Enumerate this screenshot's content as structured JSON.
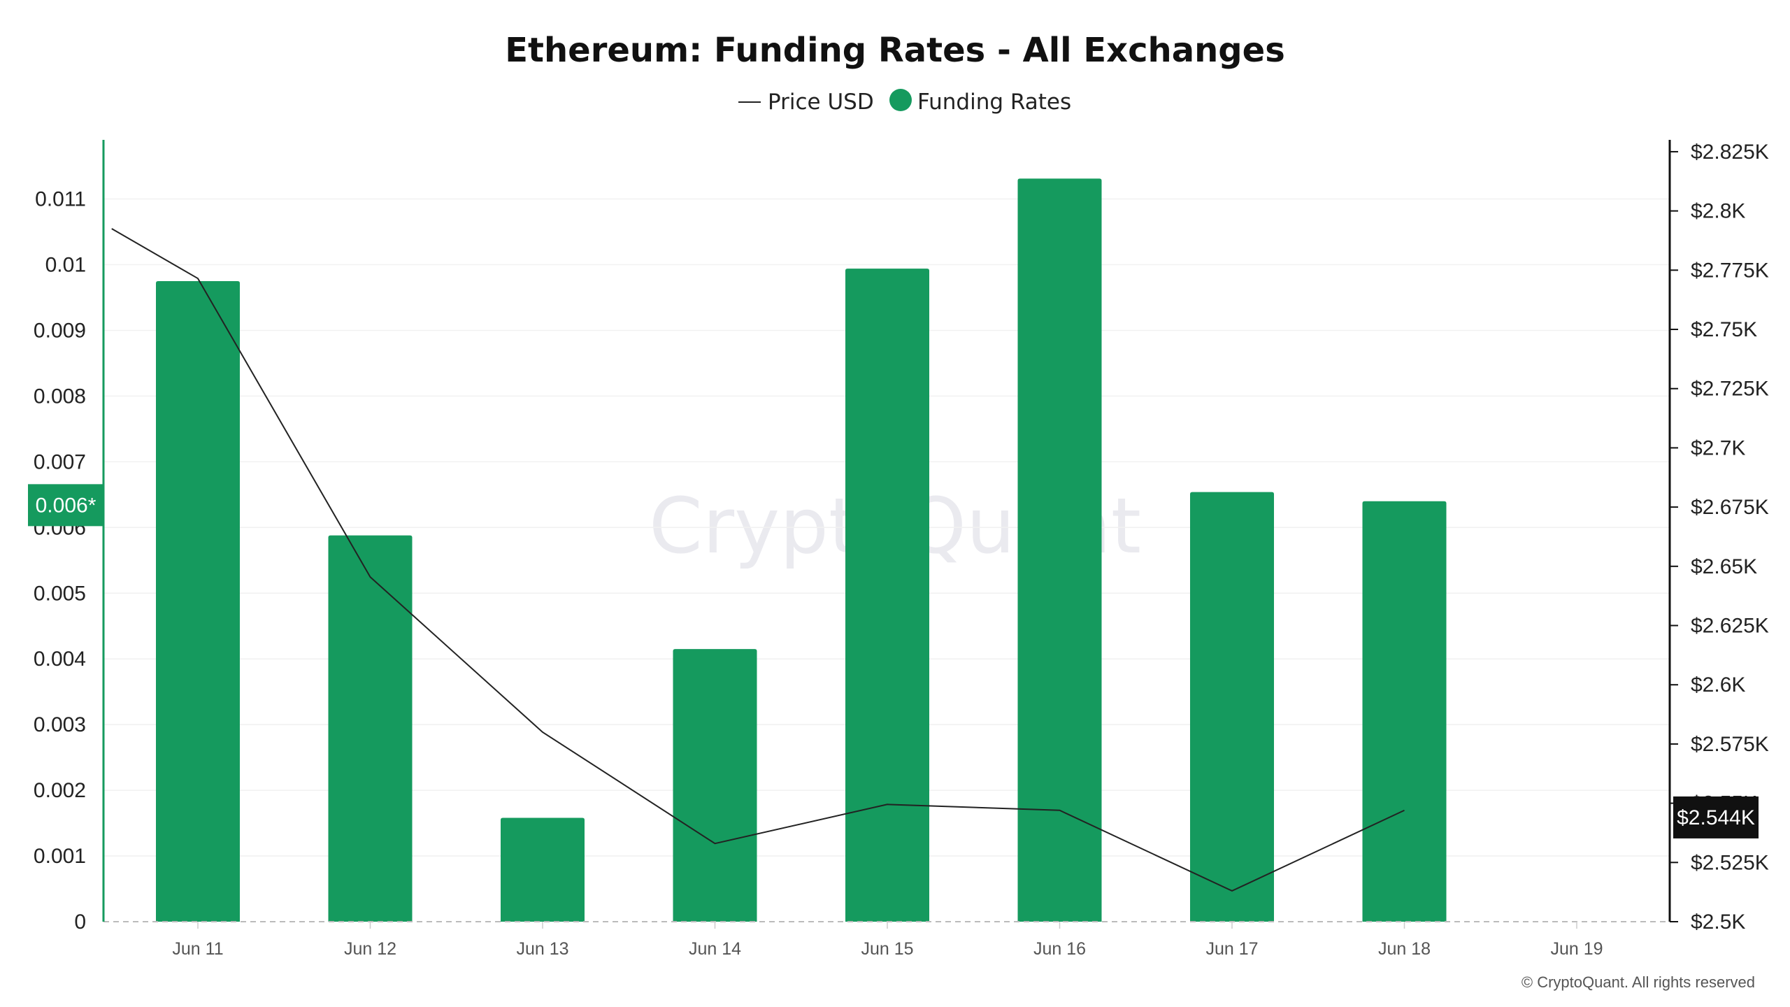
{
  "chart_data": {
    "type": "bar",
    "title": "Ethereum: Funding Rates - All Exchanges",
    "legend": [
      {
        "label": "Price USD",
        "marker": "line"
      },
      {
        "label": "Funding Rates",
        "marker": "dot"
      }
    ],
    "legend_placement": "top-center",
    "categories": [
      "Jun 11",
      "Jun 12",
      "Jun 13",
      "Jun 14",
      "Jun 15",
      "Jun 16",
      "Jun 17",
      "Jun 18",
      "Jun 19"
    ],
    "series": [
      {
        "name": "Funding Rates",
        "type": "bar",
        "axis": "left",
        "color": "#159a5e",
        "values": [
          0.00975,
          0.00588,
          0.00158,
          0.00415,
          0.00994,
          0.01131,
          0.00654,
          0.0064,
          null
        ]
      },
      {
        "name": "Price USD",
        "type": "line",
        "axis": "right",
        "color": "#222222",
        "x": [
          -0.5,
          0,
          1,
          2,
          3,
          4,
          5,
          6,
          7
        ],
        "values": [
          2.7925,
          2.7715,
          2.6455,
          2.58,
          2.533,
          2.5495,
          2.547,
          2.513,
          2.547
        ]
      }
    ],
    "y_left": {
      "ticks": [
        "0",
        "0.001",
        "0.002",
        "0.003",
        "0.004",
        "0.005",
        "0.006",
        "0.007",
        "0.008",
        "0.009",
        "0.01",
        "0.011"
      ],
      "range": [
        0,
        0.0119
      ],
      "color": "#159a5e"
    },
    "y_right": {
      "ticks": [
        "$2.5K",
        "$2.525K",
        "$2.55K",
        "$2.575K",
        "$2.6K",
        "$2.625K",
        "$2.65K",
        "$2.675K",
        "$2.7K",
        "$2.725K",
        "$2.75K",
        "$2.775K",
        "$2.8K",
        "$2.825K"
      ],
      "tick_values": [
        2.5,
        2.525,
        2.55,
        2.575,
        2.6,
        2.625,
        2.65,
        2.675,
        2.7,
        2.725,
        2.75,
        2.775,
        2.8,
        2.825
      ],
      "range": [
        2.5,
        2.83
      ],
      "color": "#111111"
    },
    "badges": {
      "left": {
        "text": "0.006*",
        "value": 0.00634,
        "color": "#159a5e"
      },
      "right": {
        "text": "$2.544K",
        "value": 2.544,
        "color": "#111111"
      }
    },
    "grid": true,
    "watermark": "CryptoQuant",
    "copyright": "© CryptoQuant. All rights reserved"
  }
}
